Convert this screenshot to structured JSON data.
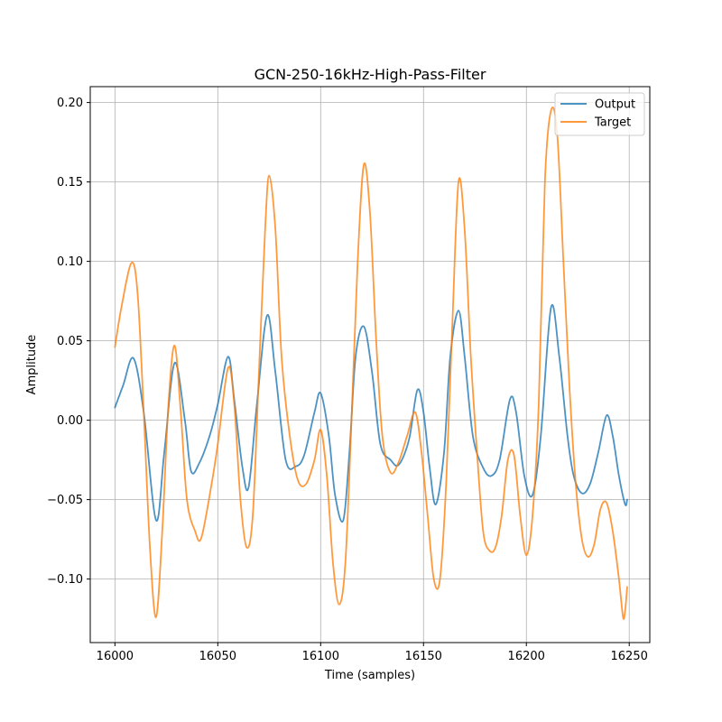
{
  "chart_data": {
    "type": "line",
    "title": "GCN-250-16kHz-High-Pass-Filter",
    "xlabel": "Time (samples)",
    "ylabel": "Amplitude",
    "xlim": [
      15988,
      16260
    ],
    "ylim": [
      -0.14,
      0.21
    ],
    "xticks": [
      16000,
      16050,
      16100,
      16150,
      16200,
      16250
    ],
    "xtick_labels": [
      "16000",
      "16050",
      "16100",
      "16150",
      "16200",
      "16250"
    ],
    "yticks": [
      -0.1,
      -0.05,
      0.0,
      0.05,
      0.1,
      0.15,
      0.2
    ],
    "ytick_labels": [
      "−0.10",
      "−0.05",
      "0.00",
      "0.05",
      "0.10",
      "0.15",
      "0.20"
    ],
    "grid": true,
    "legend_position": "upper right",
    "series": [
      {
        "name": "Output",
        "color": "#1f77b4",
        "x": [
          16000,
          16004,
          16009,
          16014,
          16020,
          16024,
          16029,
          16034,
          16037,
          16041,
          16046,
          16050,
          16055,
          16058,
          16062,
          16065,
          16069,
          16074,
          16078,
          16083,
          16088,
          16092,
          16097,
          16100,
          16104,
          16107,
          16111,
          16114,
          16117,
          16121,
          16125,
          16129,
          16134,
          16138,
          16143,
          16147,
          16150,
          16153,
          16156,
          16160,
          16163,
          16167,
          16170,
          16174,
          16179,
          16183,
          16187,
          16192,
          16195,
          16199,
          16203,
          16207,
          16212,
          16216,
          16220,
          16223,
          16227,
          16231,
          16235,
          16239,
          16242,
          16245,
          16248,
          16249
        ],
        "y": [
          0.008,
          0.022,
          0.039,
          0.005,
          -0.063,
          -0.02,
          0.036,
          0.0,
          -0.032,
          -0.027,
          -0.01,
          0.01,
          0.04,
          0.013,
          -0.03,
          -0.042,
          0.01,
          0.066,
          0.03,
          -0.025,
          -0.029,
          -0.022,
          0.005,
          0.017,
          -0.01,
          -0.047,
          -0.063,
          -0.02,
          0.04,
          0.059,
          0.03,
          -0.015,
          -0.025,
          -0.028,
          -0.012,
          0.019,
          0.005,
          -0.03,
          -0.053,
          -0.02,
          0.04,
          0.069,
          0.04,
          -0.01,
          -0.03,
          -0.035,
          -0.025,
          0.013,
          0.005,
          -0.035,
          -0.047,
          -0.01,
          0.071,
          0.04,
          -0.01,
          -0.035,
          -0.046,
          -0.04,
          -0.02,
          0.003,
          -0.01,
          -0.035,
          -0.053,
          -0.05
        ]
      },
      {
        "name": "Target",
        "color": "#ff7f0e",
        "x": [
          16000,
          16003,
          16008,
          16011,
          16014,
          16017,
          16020,
          16023,
          16026,
          16029,
          16032,
          16035,
          16039,
          16042,
          16047,
          16050,
          16055,
          16058,
          16061,
          16064,
          16067,
          16070,
          16073,
          16075,
          16078,
          16081,
          16085,
          16089,
          16093,
          16097,
          16100,
          16103,
          16106,
          16109,
          16112,
          16115,
          16118,
          16121,
          16124,
          16127,
          16130,
          16134,
          16138,
          16142,
          16146,
          16149,
          16152,
          16155,
          16158,
          16161,
          16164,
          16167,
          16170,
          16173,
          16176,
          16179,
          16182,
          16185,
          16188,
          16191,
          16194,
          16197,
          16200,
          16203,
          16206,
          16209,
          16212,
          16215,
          16218,
          16221,
          16224,
          16227,
          16230,
          16233,
          16236,
          16239,
          16242,
          16245,
          16247,
          16248,
          16249
        ],
        "y": [
          0.046,
          0.07,
          0.099,
          0.08,
          0.005,
          -0.08,
          -0.124,
          -0.07,
          0.01,
          0.047,
          0.005,
          -0.05,
          -0.07,
          -0.074,
          -0.04,
          -0.015,
          0.033,
          0.01,
          -0.05,
          -0.08,
          -0.06,
          0.03,
          0.12,
          0.154,
          0.12,
          0.04,
          -0.01,
          -0.038,
          -0.04,
          -0.025,
          -0.006,
          -0.035,
          -0.09,
          -0.116,
          -0.09,
          0.0,
          0.1,
          0.161,
          0.13,
          0.05,
          -0.01,
          -0.033,
          -0.026,
          -0.01,
          0.005,
          -0.02,
          -0.06,
          -0.1,
          -0.1,
          -0.04,
          0.06,
          0.15,
          0.12,
          0.04,
          -0.02,
          -0.07,
          -0.082,
          -0.08,
          -0.06,
          -0.025,
          -0.022,
          -0.06,
          -0.085,
          -0.06,
          0.01,
          0.15,
          0.195,
          0.18,
          0.1,
          0.02,
          -0.04,
          -0.075,
          -0.086,
          -0.078,
          -0.056,
          -0.052,
          -0.07,
          -0.1,
          -0.124,
          -0.12,
          -0.105
        ]
      }
    ]
  }
}
